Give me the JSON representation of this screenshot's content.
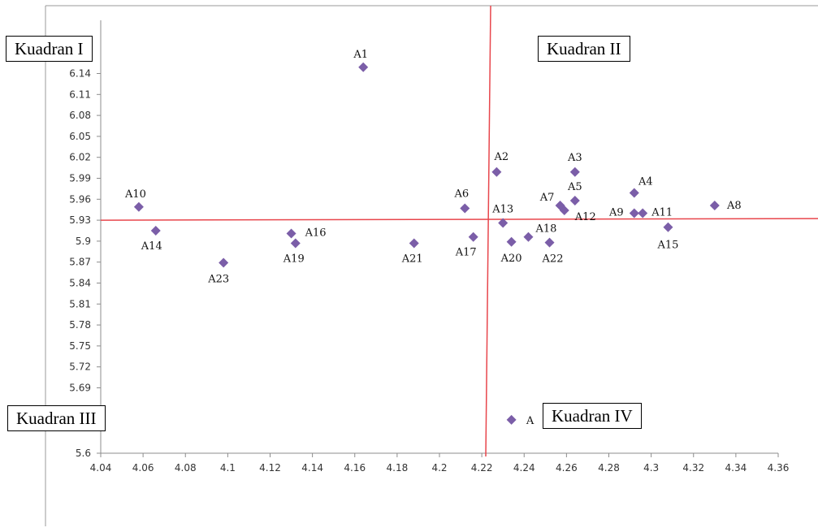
{
  "chart_data": {
    "type": "scatter",
    "title": "",
    "xlabel": "",
    "ylabel": "",
    "xlim": [
      4.04,
      4.36
    ],
    "ylim": [
      5.6,
      6.14
    ],
    "x_ticks": [
      "4.04",
      "4.06",
      "4.08",
      "4.1",
      "4.12",
      "4.14",
      "4.16",
      "4.18",
      "4.2",
      "4.22",
      "4.24",
      "4.26",
      "4.28",
      "4.3",
      "4.32",
      "4.34",
      "4.36"
    ],
    "y_ticks": [
      "5.6",
      "5.69",
      "5.72",
      "5.75",
      "5.78",
      "5.81",
      "5.84",
      "5.87",
      "5.9",
      "5.93",
      "5.96",
      "5.99",
      "6.02",
      "6.05",
      "6.08",
      "6.11",
      "6.14"
    ],
    "reference_lines": {
      "x": 4.22,
      "y": 5.93,
      "color": "#e8464c"
    },
    "marker_color": "#7b5ea8",
    "points": [
      {
        "label": "A1",
        "x": 4.164,
        "y": 6.149
      },
      {
        "label": "A2",
        "x": 4.227,
        "y": 5.999
      },
      {
        "label": "A3",
        "x": 4.264,
        "y": 5.999
      },
      {
        "label": "A4",
        "x": 4.292,
        "y": 5.969
      },
      {
        "label": "A5",
        "x": 4.264,
        "y": 5.958
      },
      {
        "label": "A6",
        "x": 4.212,
        "y": 5.947
      },
      {
        "label": "A7",
        "x": 4.257,
        "y": 5.951
      },
      {
        "label": "A8",
        "x": 4.33,
        "y": 5.951
      },
      {
        "label": "A9",
        "x": 4.292,
        "y": 5.94
      },
      {
        "label": "A10",
        "x": 4.058,
        "y": 5.949
      },
      {
        "label": "A11",
        "x": 4.296,
        "y": 5.94
      },
      {
        "label": "A12",
        "x": 4.259,
        "y": 5.944
      },
      {
        "label": "A13",
        "x": 4.23,
        "y": 5.926
      },
      {
        "label": "A14",
        "x": 4.066,
        "y": 5.915
      },
      {
        "label": "A15",
        "x": 4.308,
        "y": 5.92
      },
      {
        "label": "A16",
        "x": 4.13,
        "y": 5.911
      },
      {
        "label": "A17",
        "x": 4.216,
        "y": 5.906
      },
      {
        "label": "A18",
        "x": 4.242,
        "y": 5.906
      },
      {
        "label": "A19",
        "x": 4.132,
        "y": 5.897
      },
      {
        "label": "A20",
        "x": 4.234,
        "y": 5.899
      },
      {
        "label": "A21",
        "x": 4.188,
        "y": 5.897
      },
      {
        "label": "A22",
        "x": 4.252,
        "y": 5.898
      },
      {
        "label": "A23",
        "x": 4.098,
        "y": 5.869
      },
      {
        "label": "A",
        "x": 4.234,
        "y": 5.646
      }
    ],
    "quadrant_labels": {
      "q1": "Kuadran I",
      "q2": "Kuadran II",
      "q3": "Kuadran III",
      "q4": "Kuadran IV"
    }
  }
}
